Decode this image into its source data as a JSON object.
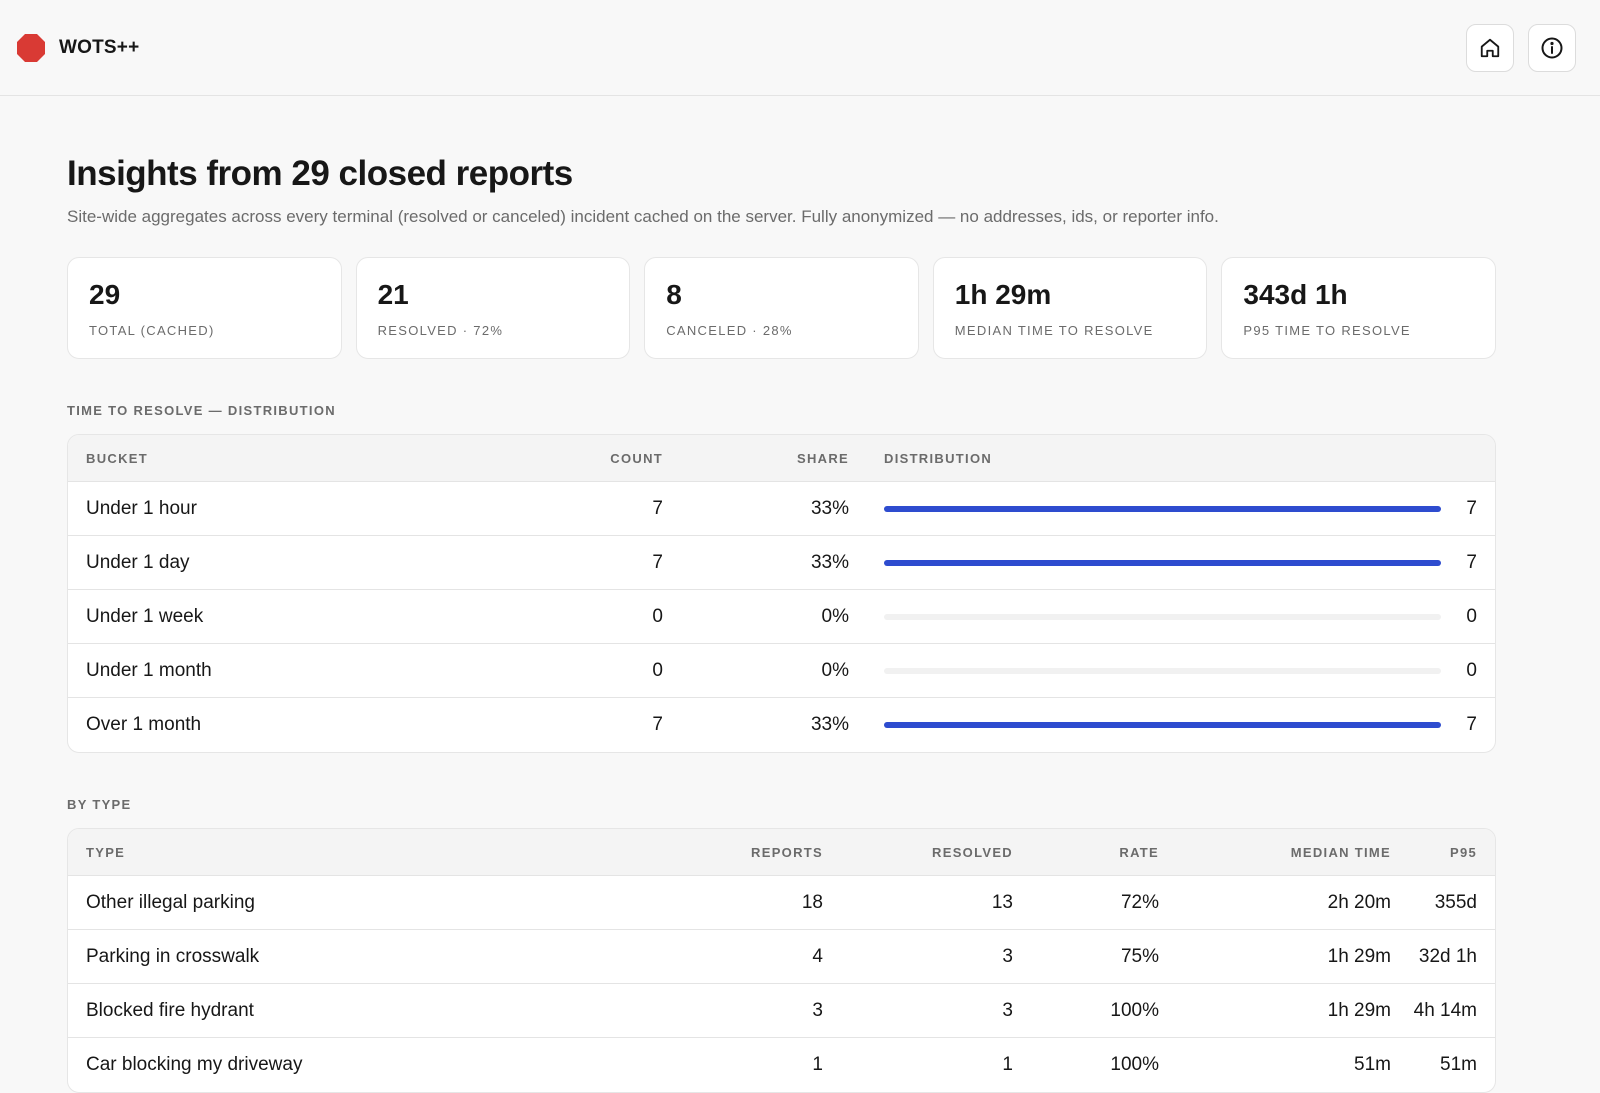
{
  "app": {
    "name": "WOTS++",
    "brand_color": "#d93a34"
  },
  "header_actions": [
    {
      "icon": "home-icon"
    },
    {
      "icon": "info-icon"
    }
  ],
  "page": {
    "title": "Insights from 29 closed reports",
    "subtitle": "Site-wide aggregates across every terminal (resolved or canceled) incident cached on the server. Fully anonymized — no addresses, ids, or reporter info."
  },
  "stats": [
    {
      "value": "29",
      "label": "TOTAL (CACHED)"
    },
    {
      "value": "21",
      "label": "RESOLVED · 72%"
    },
    {
      "value": "8",
      "label": "CANCELED · 28%"
    },
    {
      "value": "1h 29m",
      "label": "MEDIAN TIME TO RESOLVE"
    },
    {
      "value": "343d 1h",
      "label": "P95 TIME TO RESOLVE"
    }
  ],
  "distribution": {
    "section_title": "TIME TO RESOLVE — DISTRIBUTION",
    "bar_color": "#2e4ccf",
    "headers": {
      "bucket": "BUCKET",
      "count": "COUNT",
      "share": "SHARE",
      "distribution": "DISTRIBUTION"
    },
    "rows": [
      {
        "bucket": "Under 1 hour",
        "count": "7",
        "share": "33%",
        "fraction": 1,
        "bar_label": "7"
      },
      {
        "bucket": "Under 1 day",
        "count": "7",
        "share": "33%",
        "fraction": 1,
        "bar_label": "7"
      },
      {
        "bucket": "Under 1 week",
        "count": "0",
        "share": "0%",
        "fraction": 0,
        "bar_label": "0"
      },
      {
        "bucket": "Under 1 month",
        "count": "0",
        "share": "0%",
        "fraction": 0,
        "bar_label": "0"
      },
      {
        "bucket": "Over 1 month",
        "count": "7",
        "share": "33%",
        "fraction": 1,
        "bar_label": "7"
      }
    ]
  },
  "by_type": {
    "section_title": "BY TYPE",
    "headers": {
      "type": "TYPE",
      "reports": "REPORTS",
      "resolved": "RESOLVED",
      "rate": "RATE",
      "median": "MEDIAN TIME",
      "p95": "P95"
    },
    "rows": [
      {
        "type": "Other illegal parking",
        "reports": "18",
        "resolved": "13",
        "rate": "72%",
        "median": "2h 20m",
        "p95": "355d"
      },
      {
        "type": "Parking in crosswalk",
        "reports": "4",
        "resolved": "3",
        "rate": "75%",
        "median": "1h 29m",
        "p95": "32d 1h"
      },
      {
        "type": "Blocked fire hydrant",
        "reports": "3",
        "resolved": "3",
        "rate": "100%",
        "median": "1h 29m",
        "p95": "4h 14m"
      },
      {
        "type": "Car blocking my driveway",
        "reports": "1",
        "resolved": "1",
        "rate": "100%",
        "median": "51m",
        "p95": "51m"
      }
    ]
  }
}
